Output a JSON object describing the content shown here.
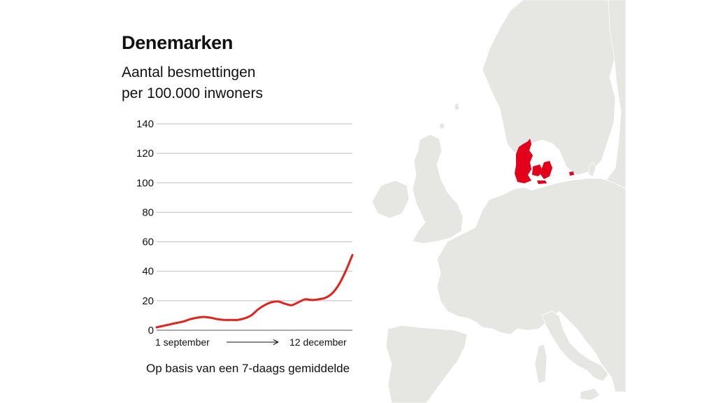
{
  "colors": {
    "land": "#e6e6e3",
    "border": "#ffffff",
    "highlight": "#e3001b",
    "line": "#e3231b",
    "grid": "#bdbdbd",
    "text": "#111111"
  },
  "header": {
    "title": "Denemarken",
    "subtitle_line1": "Aantal besmettingen",
    "subtitle_line2": "per 100.000 inwoners"
  },
  "footer": {
    "note": "Op basis van een 7-daags gemiddelde"
  },
  "map": {
    "highlighted_country": "Denemarken"
  },
  "chart_data": {
    "type": "line",
    "title": "Denemarken",
    "subtitle": "Aantal besmettingen per 100.000 inwoners",
    "xlabel": "",
    "ylabel": "",
    "ylim": [
      0,
      140
    ],
    "yticks": [
      0,
      20,
      40,
      60,
      80,
      100,
      120,
      140
    ],
    "x_start_label": "1 september",
    "x_end_label": "12 december",
    "x_arrow": "→",
    "grid": true,
    "series": [
      {
        "values": [
          2,
          3,
          4,
          5,
          6,
          7.5,
          8.5,
          9,
          8.5,
          7.5,
          7,
          7,
          7,
          8,
          10,
          14,
          17,
          19,
          19.5,
          18,
          17,
          19,
          21,
          20.5,
          21,
          22,
          25,
          31,
          40,
          51
        ]
      }
    ]
  }
}
